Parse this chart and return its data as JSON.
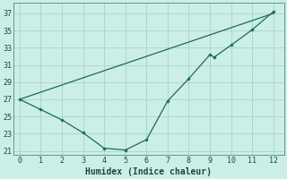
{
  "title": "",
  "xlabel": "Humidex (Indice chaleur)",
  "bg_color": "#cceee8",
  "grid_color": "#aad8d0",
  "line_color": "#1a6b5a",
  "xlim": [
    -0.3,
    12.5
  ],
  "ylim": [
    20.5,
    38.2
  ],
  "xticks": [
    0,
    1,
    2,
    3,
    4,
    5,
    6,
    7,
    8,
    9,
    10,
    11,
    12
  ],
  "yticks": [
    21,
    23,
    25,
    27,
    29,
    31,
    33,
    35,
    37
  ],
  "curve_x": [
    0,
    1,
    2,
    3,
    4,
    5,
    6,
    7,
    8,
    9,
    9.2,
    10,
    11,
    12
  ],
  "curve_y": [
    27.0,
    25.8,
    24.6,
    23.1,
    21.3,
    21.1,
    22.3,
    26.8,
    29.4,
    32.2,
    31.9,
    33.3,
    35.1,
    37.2
  ],
  "trend_x": [
    0,
    12
  ],
  "trend_y": [
    27.0,
    37.0
  ],
  "marker": "D",
  "markersize": 2.2,
  "linewidth": 0.9,
  "tick_fontsize": 6.0,
  "xlabel_fontsize": 7.0
}
